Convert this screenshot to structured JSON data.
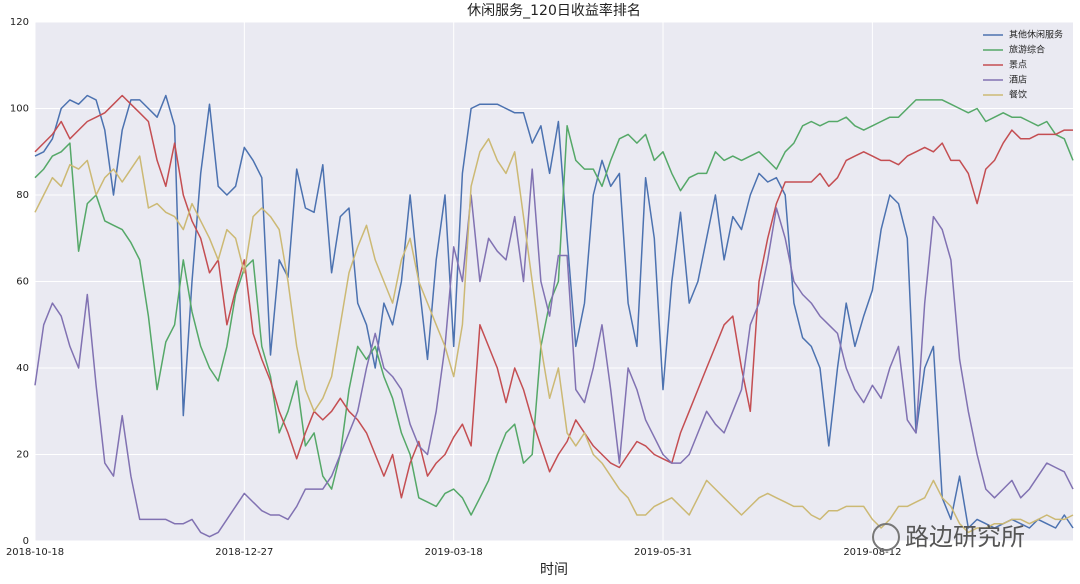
{
  "chart_data": {
    "type": "line",
    "title": "休闲服务_120日收益率排名",
    "xlabel": "时间",
    "watermark": "路边研究所",
    "categories": [
      "2018-10-18",
      null,
      null,
      null,
      null,
      null,
      null,
      null,
      null,
      null,
      null,
      null,
      null,
      null,
      null,
      null,
      null,
      null,
      null,
      null,
      null,
      null,
      null,
      null,
      "2018-12-27",
      null,
      null,
      null,
      null,
      null,
      null,
      null,
      null,
      null,
      null,
      null,
      null,
      null,
      null,
      null,
      null,
      null,
      null,
      null,
      null,
      null,
      null,
      null,
      "2019-03-18",
      null,
      null,
      null,
      null,
      null,
      null,
      null,
      null,
      null,
      null,
      null,
      null,
      null,
      null,
      null,
      null,
      null,
      null,
      null,
      null,
      null,
      null,
      null,
      "2019-05-31",
      null,
      null,
      null,
      null,
      null,
      null,
      null,
      null,
      null,
      null,
      null,
      null,
      null,
      null,
      null,
      null,
      null,
      null,
      null,
      null,
      null,
      null,
      null,
      "2019-08-12",
      null,
      null,
      null,
      null,
      null,
      null,
      null,
      null,
      null,
      null,
      null,
      null,
      null,
      null,
      null,
      null,
      null,
      null,
      null,
      null,
      null,
      null,
      null
    ],
    "series": [
      {
        "name": "其他休闲服务",
        "color": "#4c72b0",
        "values": [
          89,
          90,
          93,
          100,
          102,
          101,
          103,
          102,
          95,
          80,
          95,
          102,
          102,
          100,
          98,
          103,
          96,
          29,
          60,
          85,
          101,
          82,
          80,
          82,
          91,
          88,
          84,
          43,
          65,
          61,
          86,
          77,
          76,
          87,
          62,
          75,
          77,
          55,
          50,
          40,
          55,
          50,
          60,
          80,
          60,
          42,
          65,
          80,
          45,
          85,
          100,
          101,
          101,
          101,
          100,
          99,
          99,
          92,
          96,
          85,
          97,
          70,
          45,
          55,
          80,
          88,
          82,
          85,
          55,
          45,
          84,
          70,
          35,
          60,
          76,
          55,
          60,
          70,
          80,
          65,
          75,
          72,
          80,
          85,
          83,
          84,
          80,
          55,
          47,
          45,
          40,
          22,
          40,
          55,
          45,
          52,
          58,
          72,
          80,
          78,
          70,
          25,
          40,
          45,
          10,
          5,
          15,
          3,
          5,
          4,
          3,
          4,
          5,
          4,
          3,
          5,
          4,
          3,
          6,
          3
        ]
      },
      {
        "name": "旅游综合",
        "color": "#55a868",
        "values": [
          84,
          86,
          89,
          90,
          92,
          67,
          78,
          80,
          74,
          73,
          72,
          69,
          65,
          52,
          35,
          46,
          50,
          65,
          53,
          45,
          40,
          37,
          45,
          57,
          63,
          65,
          45,
          38,
          25,
          30,
          37,
          22,
          25,
          15,
          12,
          20,
          35,
          45,
          42,
          45,
          38,
          33,
          25,
          20,
          10,
          9,
          8,
          11,
          12,
          10,
          6,
          10,
          14,
          20,
          25,
          27,
          18,
          20,
          45,
          55,
          60,
          96,
          88,
          86,
          86,
          82,
          88,
          93,
          94,
          92,
          94,
          88,
          90,
          85,
          81,
          84,
          85,
          85,
          90,
          88,
          89,
          88,
          89,
          90,
          88,
          86,
          90,
          92,
          96,
          97,
          96,
          97,
          97,
          98,
          96,
          95,
          96,
          97,
          98,
          98,
          100,
          102,
          102,
          102,
          102,
          101,
          100,
          99,
          100,
          97,
          98,
          99,
          98,
          98,
          97,
          96,
          97,
          94,
          93,
          88
        ]
      },
      {
        "name": "景点",
        "color": "#c44e52",
        "values": [
          90,
          92,
          94,
          97,
          93,
          95,
          97,
          98,
          99,
          101,
          103,
          101,
          99,
          97,
          88,
          82,
          92,
          80,
          74,
          70,
          62,
          65,
          50,
          58,
          65,
          48,
          42,
          37,
          30,
          25,
          19,
          25,
          30,
          28,
          30,
          33,
          30,
          28,
          25,
          20,
          15,
          20,
          10,
          18,
          23,
          15,
          18,
          20,
          24,
          27,
          22,
          50,
          45,
          40,
          32,
          40,
          35,
          28,
          22,
          16,
          20,
          23,
          28,
          25,
          22,
          20,
          18,
          17,
          20,
          23,
          22,
          20,
          19,
          18,
          25,
          30,
          35,
          40,
          45,
          50,
          52,
          40,
          30,
          60,
          70,
          78,
          83,
          83,
          83,
          83,
          85,
          82,
          84,
          88,
          89,
          90,
          89,
          88,
          88,
          87,
          89,
          90,
          91,
          90,
          92,
          88,
          88,
          85,
          78,
          86,
          88,
          92,
          95,
          93,
          93,
          94,
          94,
          94,
          95,
          95
        ]
      },
      {
        "name": "酒店",
        "color": "#8172b2",
        "values": [
          36,
          50,
          55,
          52,
          45,
          40,
          57,
          36,
          18,
          15,
          29,
          15,
          5,
          5,
          5,
          5,
          4,
          4,
          5,
          2,
          1,
          2,
          5,
          8,
          11,
          9,
          7,
          6,
          6,
          5,
          8,
          12,
          12,
          12,
          15,
          20,
          25,
          30,
          40,
          48,
          40,
          38,
          35,
          27,
          22,
          20,
          30,
          45,
          68,
          60,
          80,
          60,
          70,
          67,
          65,
          75,
          60,
          86,
          60,
          52,
          66,
          66,
          35,
          32,
          40,
          50,
          35,
          18,
          40,
          35,
          28,
          24,
          20,
          18,
          18,
          20,
          25,
          30,
          27,
          25,
          30,
          35,
          50,
          55,
          65,
          77,
          70,
          60,
          57,
          55,
          52,
          50,
          48,
          40,
          35,
          32,
          36,
          33,
          40,
          45,
          28,
          25,
          55,
          75,
          72,
          65,
          42,
          30,
          20,
          12,
          10,
          12,
          14,
          10,
          12,
          15,
          18,
          17,
          16,
          12
        ]
      },
      {
        "name": "餐饮",
        "color": "#ccb974",
        "values": [
          76,
          80,
          84,
          82,
          87,
          86,
          88,
          80,
          84,
          86,
          83,
          86,
          89,
          77,
          78,
          76,
          75,
          72,
          78,
          74,
          70,
          65,
          72,
          70,
          62,
          75,
          77,
          75,
          72,
          60,
          45,
          35,
          30,
          33,
          38,
          50,
          62,
          68,
          73,
          65,
          60,
          55,
          65,
          70,
          60,
          55,
          50,
          45,
          38,
          50,
          82,
          90,
          93,
          88,
          85,
          90,
          75,
          60,
          45,
          33,
          40,
          25,
          22,
          25,
          20,
          18,
          15,
          12,
          10,
          6,
          6,
          8,
          9,
          10,
          8,
          6,
          10,
          14,
          12,
          10,
          8,
          6,
          8,
          10,
          11,
          10,
          9,
          8,
          8,
          6,
          5,
          7,
          7,
          8,
          8,
          8,
          5,
          3,
          5,
          8,
          8,
          9,
          10,
          14,
          10,
          8,
          4,
          2,
          3,
          3,
          4,
          4,
          5,
          5,
          4,
          5,
          6,
          5,
          5,
          6
        ]
      }
    ],
    "ylim": [
      0,
      120
    ],
    "yticks": [
      0,
      20,
      40,
      60,
      80,
      100,
      120
    ],
    "grid": true,
    "background": "#eaeaf2",
    "legend": "upper right"
  }
}
